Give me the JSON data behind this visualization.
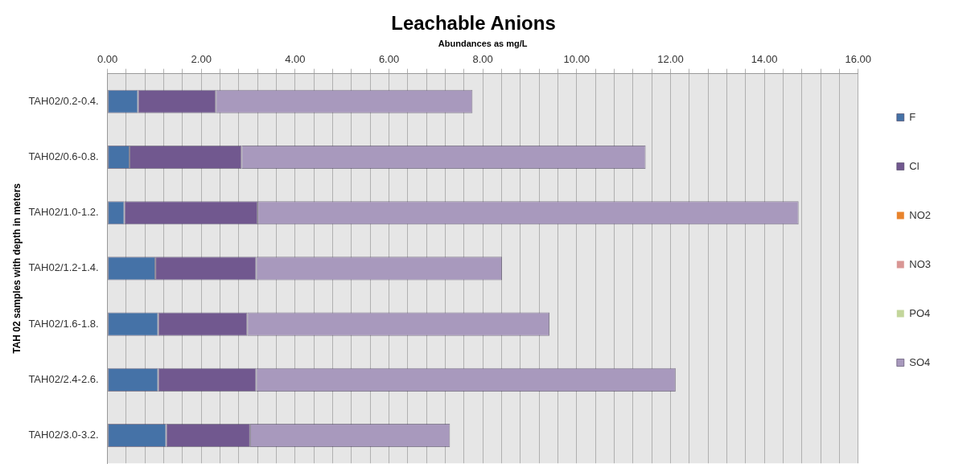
{
  "chart_data": {
    "type": "bar",
    "orientation": "horizontal",
    "stacked": true,
    "title": "Leachable Anions",
    "xlabel": "Abundances as mg/L",
    "ylabel": "TAH 02 samples with depth in meters",
    "categories": [
      "TAH02/0.2-0.4.",
      "TAH02/0.6-0.8.",
      "TAH02/1.0-1.2.",
      "TAH02/1.2-1.4.",
      "TAH02/1.6-1.8.",
      "TAH02/2.4-2.6.",
      "TAH02/3.0-3.2."
    ],
    "series": [
      {
        "name": "F",
        "color": "#4572a7",
        "values": [
          0.65,
          0.47,
          0.36,
          1.02,
          1.08,
          1.08,
          1.25
        ]
      },
      {
        "name": "Cl",
        "color": "#71588f",
        "values": [
          1.66,
          2.39,
          2.84,
          2.15,
          1.9,
          2.09,
          1.79
        ]
      },
      {
        "name": "NO2",
        "color": "#e8832c",
        "values": [
          0,
          0,
          0,
          0,
          0,
          0,
          0
        ]
      },
      {
        "name": "NO3",
        "color": "#d99694",
        "values": [
          0,
          0,
          0,
          0,
          0,
          0,
          0
        ]
      },
      {
        "name": "PO4",
        "color": "#c3d69b",
        "values": [
          0,
          0,
          0,
          0,
          0,
          0,
          0
        ]
      },
      {
        "name": "SO4",
        "color": "#a899bd",
        "values": [
          5.47,
          8.61,
          11.53,
          5.24,
          6.44,
          8.94,
          4.26
        ]
      }
    ],
    "xlim": [
      0,
      16
    ],
    "xticks": [
      {
        "value": 0,
        "label": "0.00"
      },
      {
        "value": 0.4,
        "label": null
      },
      {
        "value": 0.8,
        "label": null
      },
      {
        "value": 1.2,
        "label": null
      },
      {
        "value": 1.6,
        "label": null
      },
      {
        "value": 2,
        "label": "2.00"
      },
      {
        "value": 2.4,
        "label": null
      },
      {
        "value": 2.8,
        "label": null
      },
      {
        "value": 3.2,
        "label": null
      },
      {
        "value": 3.6,
        "label": null
      },
      {
        "value": 4,
        "label": "4.00"
      },
      {
        "value": 4.4,
        "label": null
      },
      {
        "value": 4.8,
        "label": null
      },
      {
        "value": 5.2,
        "label": null
      },
      {
        "value": 5.6,
        "label": null
      },
      {
        "value": 6,
        "label": "6.00"
      },
      {
        "value": 6.4,
        "label": null
      },
      {
        "value": 6.8,
        "label": null
      },
      {
        "value": 7.2,
        "label": null
      },
      {
        "value": 7.6,
        "label": null
      },
      {
        "value": 8,
        "label": "8.00"
      },
      {
        "value": 8.4,
        "label": null
      },
      {
        "value": 8.8,
        "label": null
      },
      {
        "value": 9.2,
        "label": null
      },
      {
        "value": 9.6,
        "label": null
      },
      {
        "value": 10,
        "label": "10.00"
      },
      {
        "value": 10.4,
        "label": null
      },
      {
        "value": 10.8,
        "label": null
      },
      {
        "value": 11.2,
        "label": null
      },
      {
        "value": 11.6,
        "label": null
      },
      {
        "value": 12,
        "label": "12.00"
      },
      {
        "value": 12.4,
        "label": null
      },
      {
        "value": 12.8,
        "label": null
      },
      {
        "value": 13.2,
        "label": null
      },
      {
        "value": 13.6,
        "label": null
      },
      {
        "value": 14,
        "label": "14.00"
      },
      {
        "value": 14.4,
        "label": null
      },
      {
        "value": 14.8,
        "label": null
      },
      {
        "value": 15.2,
        "label": null
      },
      {
        "value": 15.6,
        "label": null
      },
      {
        "value": 16,
        "label": "16.00"
      }
    ],
    "grid": "x",
    "legend": "right"
  }
}
